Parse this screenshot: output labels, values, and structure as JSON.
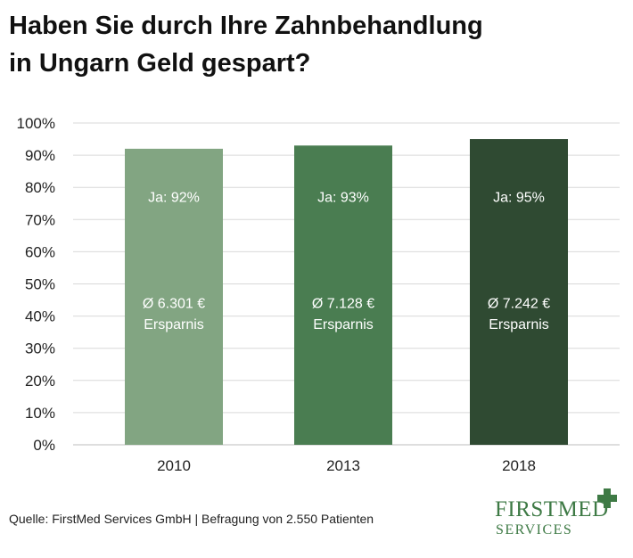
{
  "title": {
    "line1": "Haben Sie durch Ihre Zahnbehandlung",
    "line2": "in Ungarn Geld gespart?"
  },
  "footer": {
    "source": "Quelle: FirstMed Services GmbH  |  Befragung von 2.550 Patienten"
  },
  "logo": {
    "name": "FIRSTMED",
    "sub": "SERVICES",
    "icon": "cross-icon",
    "color": "#3e7a45"
  },
  "chart_data": {
    "type": "bar",
    "categories": [
      "2010",
      "2013",
      "2018"
    ],
    "values": [
      92,
      93,
      95
    ],
    "bar_labels": [
      "Ja: 92%",
      "Ja: 93%",
      "Ja: 95%"
    ],
    "savings_labels": [
      "Ø 6.301 €",
      "Ø 7.128 €",
      "Ø 7.242 €"
    ],
    "savings_suffix": "Ersparnis",
    "colors": [
      "#82a582",
      "#4a7d51",
      "#2f4a32"
    ],
    "ylim": [
      0,
      100
    ],
    "yticks": [
      "0%",
      "10%",
      "20%",
      "30%",
      "40%",
      "50%",
      "60%",
      "70%",
      "80%",
      "90%",
      "100%"
    ],
    "grid": true
  }
}
